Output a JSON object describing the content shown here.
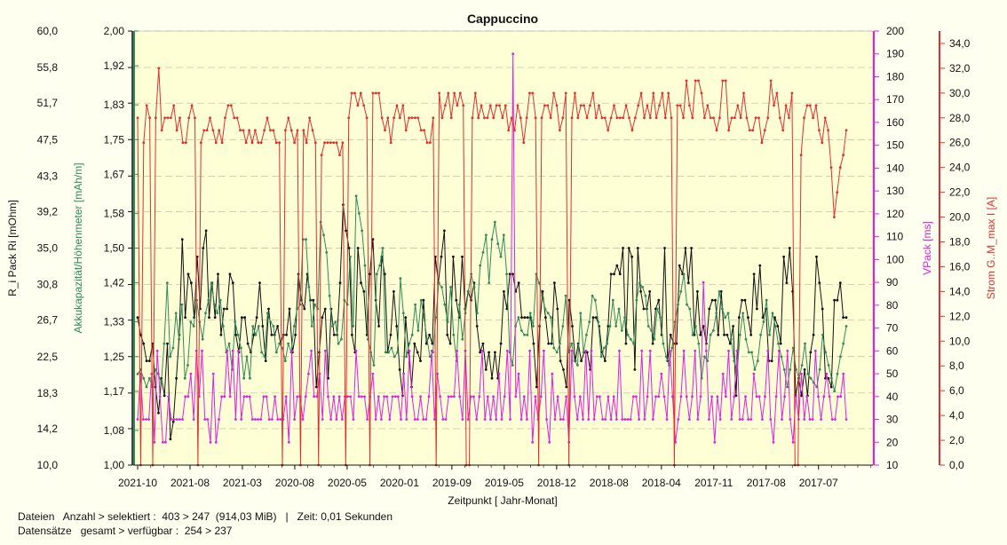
{
  "chart_data": {
    "type": "line",
    "title": "Cappuccino",
    "xlabel": "Zeitpunkt  [ Jahr-Monat]",
    "x_ticks": [
      "2021-10",
      "2021-08",
      "2021-03",
      "2020-08",
      "2020-05",
      "2020-01",
      "2019-09",
      "2019-05",
      "2018-12",
      "2018-08",
      "2018-04",
      "2017-11",
      "2017-08",
      "2017-07"
    ],
    "axes": [
      {
        "id": "ri",
        "label": "R_i Pack   Ri   [mOhm]",
        "color": "#111111",
        "range": [
          10.0,
          60.0
        ],
        "ticks": [
          "10,0",
          "14,2",
          "18,3",
          "22,5",
          "26,7",
          "30,8",
          "35,0",
          "39,2",
          "43,3",
          "47,5",
          "51,7",
          "55,8",
          "60,0"
        ]
      },
      {
        "id": "akku",
        "label": "Akkukapazität/Höhenmeter   [mAh/m]",
        "color": "#2e8b57",
        "range": [
          1.0,
          2.0
        ],
        "ticks": [
          "1,00",
          "1,08",
          "1,17",
          "1,25",
          "1,33",
          "1,42",
          "1,50",
          "1,58",
          "1,67",
          "1,75",
          "1,83",
          "1,92",
          "2,00"
        ]
      },
      {
        "id": "vpack",
        "label": "VPack   [ms]",
        "color": "#e020e0",
        "range": [
          10,
          200
        ],
        "ticks": [
          "10",
          "20",
          "30",
          "40",
          "50",
          "60",
          "70",
          "80",
          "90",
          "100",
          "110",
          "120",
          "130",
          "140",
          "150",
          "160",
          "170",
          "180",
          "190",
          "200"
        ]
      },
      {
        "id": "strom",
        "label": "Strom G..M_max   I   [A]",
        "color": "#e03030",
        "range": [
          0.0,
          35.0
        ],
        "ticks": [
          "0,0",
          "2,0",
          "4,0",
          "6,0",
          "8,0",
          "10,0",
          "12,0",
          "14,0",
          "16,0",
          "18,0",
          "20,0",
          "22,0",
          "24,0",
          "26,0",
          "28,0",
          "30,0",
          "32,0",
          "34,0"
        ]
      }
    ],
    "series": [
      {
        "axis": "ri",
        "color": "#111111",
        "values": [
          27,
          25,
          24,
          22,
          22,
          24,
          19,
          16,
          20,
          18,
          24,
          13,
          15,
          20,
          25,
          36,
          27,
          32,
          31,
          27,
          34,
          28,
          35,
          37,
          27,
          31,
          27,
          32,
          25,
          28,
          28,
          32,
          31,
          25,
          23,
          27,
          27,
          24,
          23,
          25,
          27,
          31,
          26,
          22,
          28,
          25,
          25,
          26,
          24,
          25,
          25,
          28,
          23,
          25,
          32,
          29,
          28,
          32,
          29,
          29,
          19,
          23,
          27,
          28,
          20,
          28,
          25,
          25,
          31,
          40,
          37,
          35,
          25,
          23,
          35,
          31,
          30,
          25,
          32,
          36,
          29,
          26,
          34,
          32,
          23,
          25,
          30,
          26,
          21,
          18,
          27,
          23,
          19,
          24,
          23,
          22,
          29,
          24,
          25,
          24,
          34,
          31,
          34,
          37,
          25,
          24,
          34,
          29,
          27,
          34,
          28,
          30,
          29,
          31,
          26,
          23,
          24,
          21,
          23,
          20,
          23,
          20,
          24,
          30,
          28,
          32,
          32,
          30,
          31,
          27,
          27,
          27,
          27,
          24,
          19,
          26,
          30,
          27,
          24,
          24,
          31,
          28,
          22,
          21,
          19,
          29,
          26,
          22,
          24,
          22,
          23,
          23,
          21,
          27,
          27,
          26,
          23,
          22,
          26,
          32,
          32,
          33,
          32,
          35,
          24,
          35,
          34,
          21,
          35,
          30,
          28,
          28,
          30,
          24,
          28,
          29,
          25,
          35,
          22,
          25,
          24,
          24,
          33,
          32,
          35,
          31,
          35,
          25,
          30,
          25,
          26,
          24,
          28,
          29,
          29,
          25,
          30,
          25,
          25,
          24,
          26,
          18,
          27,
          29,
          29,
          27,
          25,
          32,
          28,
          33,
          27,
          28,
          22,
          22,
          27,
          26,
          24,
          34,
          31,
          35,
          30,
          18,
          20,
          18,
          21,
          18,
          23,
          25,
          34,
          31,
          28,
          20,
          20,
          19,
          29,
          29,
          31,
          27,
          27
        ]
      },
      {
        "axis": "akku",
        "color": "#2e8b57",
        "values": [
          1.21,
          1.22,
          1.2,
          1.18,
          1.2,
          1.18,
          1.22,
          1.21,
          1.19,
          1.28,
          1.42,
          1.25,
          1.27,
          1.35,
          1.29,
          1.37,
          1.2,
          1.23,
          1.33,
          1.32,
          1.38,
          1.33,
          1.29,
          1.35,
          1.38,
          1.42,
          1.37,
          1.35,
          1.38,
          1.32,
          1.26,
          1.28,
          1.22,
          1.33,
          1.3,
          1.27,
          1.2,
          1.25,
          1.2,
          1.32,
          1.3,
          1.32,
          1.26,
          1.25,
          1.35,
          1.33,
          1.32,
          1.26,
          1.28,
          1.27,
          1.24,
          1.28,
          1.26,
          1.32,
          1.36,
          1.37,
          1.52,
          1.52,
          1.41,
          1.32,
          1.37,
          1.36,
          1.56,
          1.53,
          1.49,
          1.39,
          1.32,
          1.33,
          1.28,
          1.29,
          1.38,
          1.37,
          1.48,
          1.32,
          1.62,
          1.58,
          1.54,
          1.46,
          1.29,
          1.26,
          1.23,
          1.44,
          1.46,
          1.5,
          1.26,
          1.26,
          1.27,
          1.25,
          1.26,
          1.43,
          1.35,
          1.25,
          1.28,
          1.3,
          1.37,
          1.31,
          1.38,
          1.34,
          1.29,
          1.25,
          1.26,
          1.34,
          1.42,
          1.41,
          1.37,
          1.33,
          1.41,
          1.3,
          1.24,
          1.37,
          1.29,
          1.35,
          1.4,
          1.44,
          1.41,
          1.35,
          1.46,
          1.49,
          1.53,
          1.42,
          1.52,
          1.56,
          1.51,
          1.48,
          1.53,
          1.44,
          1.26,
          1.23,
          1.32,
          1.34,
          1.31,
          1.3,
          1.3,
          1.35,
          1.32,
          1.44,
          1.42,
          1.39,
          1.36,
          1.35,
          1.34,
          1.27,
          1.26,
          1.28,
          1.32,
          1.39,
          1.26,
          1.28,
          1.24,
          1.23,
          1.35,
          1.26,
          1.3,
          1.33,
          1.39,
          1.38,
          1.33,
          1.25,
          1.27,
          1.28,
          1.32,
          1.38,
          1.32,
          1.36,
          1.31,
          1.34,
          1.3,
          1.29,
          1.28,
          1.38,
          1.42,
          1.41,
          1.39,
          1.32,
          1.31,
          1.29,
          1.36,
          1.34,
          1.28,
          1.25,
          1.23,
          1.27,
          1.33,
          1.37,
          1.4,
          1.44,
          1.37,
          1.36,
          1.3,
          1.32,
          1.28,
          1.2,
          1.25,
          1.24,
          1.3,
          1.31,
          1.35,
          1.4,
          1.36,
          1.34,
          1.35,
          1.29,
          1.24,
          1.21,
          1.3,
          1.35,
          1.29,
          1.26,
          1.26,
          1.22,
          1.24,
          1.3,
          1.33,
          1.38,
          1.3,
          1.35,
          1.32,
          1.28,
          1.25,
          1.22,
          1.18,
          1.22,
          1.27,
          1.22,
          1.2,
          1.23,
          1.28,
          1.21,
          1.2,
          1.19,
          1.18,
          1.22,
          1.3,
          1.26,
          1.23,
          1.2,
          1.17,
          1.21,
          1.25,
          1.28,
          1.32
        ]
      },
      {
        "axis": "vpack",
        "color": "#e020e0",
        "values": [
          30,
          50,
          30,
          30,
          30,
          50,
          20,
          60,
          40,
          20,
          20,
          40,
          30,
          30,
          30,
          30,
          30,
          40,
          40,
          50,
          30,
          60,
          40,
          60,
          30,
          30,
          20,
          50,
          20,
          30,
          40,
          40,
          60,
          40,
          60,
          30,
          60,
          30,
          40,
          40,
          40,
          30,
          30,
          30,
          30,
          40,
          40,
          30,
          30,
          40,
          30,
          30,
          30,
          40,
          20,
          60,
          30,
          40,
          40,
          30,
          40,
          50,
          60,
          40,
          40,
          50,
          30,
          60,
          40,
          30,
          40,
          30,
          40,
          30,
          40,
          40,
          40,
          30,
          60,
          40,
          40,
          40,
          30,
          40,
          50,
          30,
          40,
          30,
          40,
          40,
          30,
          40,
          40,
          40,
          30,
          50,
          30,
          60,
          40,
          30,
          30,
          40,
          30,
          30,
          40,
          60,
          30,
          50,
          40,
          30,
          30,
          40,
          40,
          40,
          60,
          40,
          30,
          60,
          30,
          40,
          40,
          30,
          40,
          60,
          30,
          40,
          30,
          40,
          30,
          50,
          30,
          40,
          60,
          30,
          190,
          40,
          50,
          30,
          40,
          30,
          60,
          20,
          40,
          30,
          40,
          60,
          30,
          20,
          50,
          30,
          40,
          30,
          30,
          40,
          20,
          60,
          40,
          30,
          40,
          30,
          60,
          30,
          60,
          30,
          40,
          40,
          30,
          30,
          40,
          30,
          40,
          30,
          60,
          30,
          30,
          30,
          30,
          40,
          40,
          30,
          60,
          30,
          40,
          60,
          30,
          40,
          40,
          50,
          40,
          30,
          60,
          40,
          20,
          30,
          40,
          60,
          40,
          30,
          40,
          60,
          30,
          40,
          90,
          60,
          30,
          40,
          20,
          40,
          30,
          50,
          40,
          60,
          30,
          40,
          60,
          30,
          30,
          40,
          30,
          30,
          50,
          40,
          40,
          30,
          40,
          60,
          30,
          20,
          40,
          60,
          30,
          40,
          60,
          30,
          20,
          40,
          30,
          50,
          30,
          40,
          30,
          30,
          60,
          40,
          30,
          40,
          50,
          40,
          30,
          30,
          40,
          40,
          50,
          30
        ]
      },
      {
        "axis": "strom",
        "color": "#e03030",
        "values": [
          28,
          0,
          26,
          29,
          28,
          0,
          28,
          32,
          27,
          28,
          28,
          28,
          29,
          27,
          28,
          26,
          26,
          28,
          29,
          28,
          0,
          26,
          27,
          27,
          28,
          27,
          26,
          27,
          26,
          28,
          29,
          29,
          28,
          28,
          27,
          27,
          26,
          27,
          26,
          27,
          26,
          26,
          27,
          28,
          27,
          27,
          26,
          26,
          0,
          27,
          28,
          27,
          26,
          27,
          0,
          27,
          26,
          28,
          27,
          26,
          0,
          25,
          26,
          26,
          26,
          26,
          26,
          25,
          26,
          0,
          28,
          30,
          30,
          29,
          30,
          29,
          28,
          0,
          30,
          30,
          30,
          28,
          27,
          28,
          26,
          28,
          29,
          28,
          29,
          27,
          28,
          28,
          28,
          28,
          27,
          27,
          26,
          26,
          28,
          0,
          30,
          28,
          29,
          30,
          28,
          30,
          29,
          30,
          29,
          0,
          0,
          28,
          30,
          28,
          29,
          28,
          28,
          29,
          28,
          29,
          29,
          28,
          29,
          27,
          28,
          27,
          29,
          28,
          26,
          28,
          30,
          30,
          28,
          0,
          28,
          29,
          29,
          28,
          30,
          29,
          27,
          28,
          30,
          0,
          28,
          30,
          28,
          29,
          29,
          28,
          29,
          30,
          28,
          29,
          28,
          28,
          27,
          28,
          29,
          28,
          28,
          28,
          29,
          28,
          27,
          28,
          29,
          30,
          28,
          29,
          28,
          30,
          28,
          29,
          30,
          28,
          30,
          28,
          0,
          29,
          29,
          28,
          31,
          29,
          28,
          31,
          31,
          30,
          28,
          29,
          28,
          28,
          27,
          28,
          31,
          31,
          27,
          28,
          28,
          29,
          28,
          30,
          28,
          27,
          27,
          28,
          28,
          26,
          27,
          28,
          31,
          29,
          30,
          28,
          27,
          29,
          28,
          30,
          0,
          0,
          25,
          28,
          29,
          29,
          28,
          29,
          27,
          26,
          28,
          27,
          24,
          20,
          22,
          24,
          25,
          27
        ]
      }
    ]
  },
  "footer": {
    "line1": "Dateien   Anzahl > selektiert :  403 > 247  (914,03 MiB)   |   Zeit: 0,01 Sekunden",
    "line2": "Datensätze   gesamt > verfügbar :  254 > 237"
  }
}
